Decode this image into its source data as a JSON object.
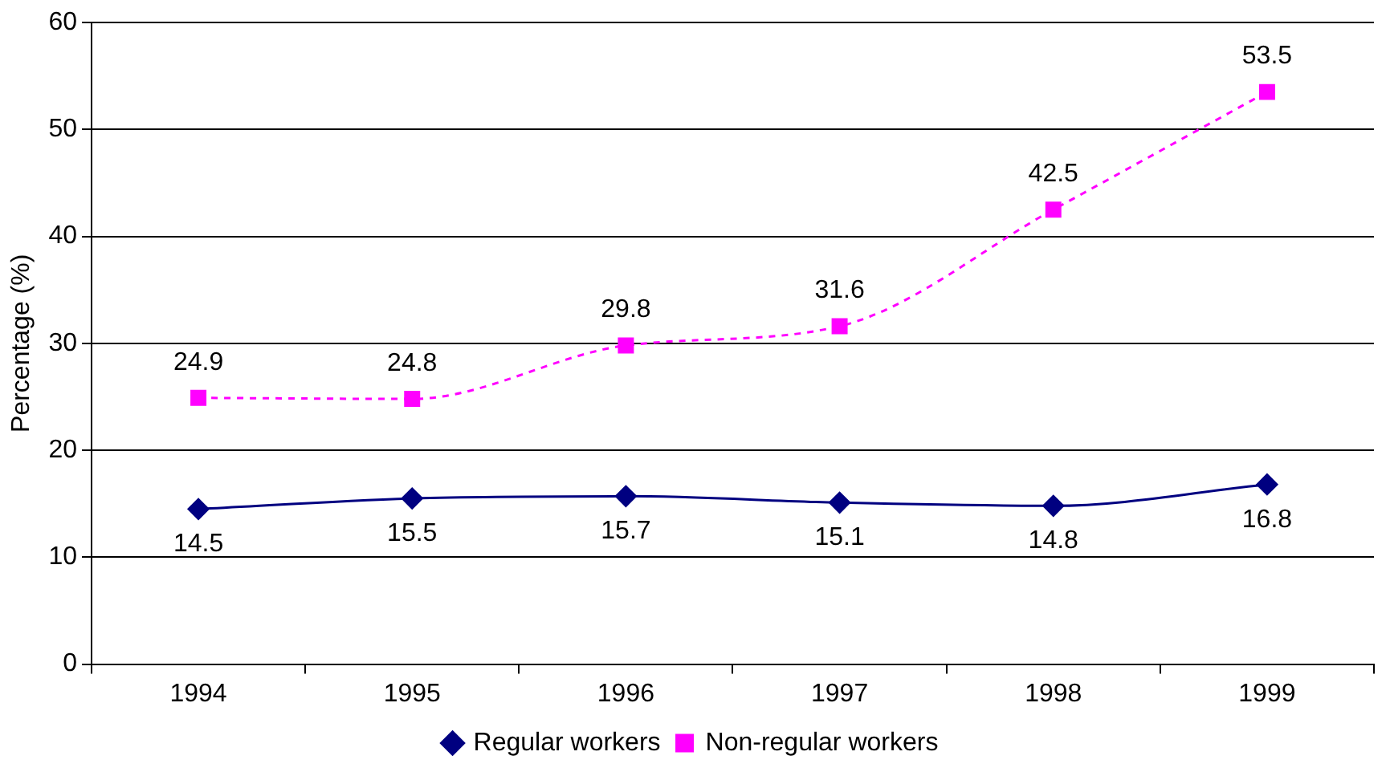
{
  "chart_data": {
    "type": "line",
    "ylabel": "Percentage (%)",
    "categories": [
      "1994",
      "1995",
      "1996",
      "1997",
      "1998",
      "1999"
    ],
    "series": [
      {
        "name": "Regular workers",
        "color": "#000080",
        "values": [
          14.5,
          15.5,
          15.7,
          15.1,
          14.8,
          16.8
        ],
        "marker": "diamond",
        "line_style": "solid"
      },
      {
        "name": "Non-regular workers",
        "color": "#ff00ff",
        "values": [
          24.9,
          24.8,
          29.8,
          31.6,
          42.5,
          53.5
        ],
        "marker": "square",
        "line_style": "dashed"
      }
    ],
    "ylim": [
      0,
      60
    ],
    "yticks": [
      0,
      10,
      20,
      30,
      40,
      50,
      60
    ],
    "grid": "y",
    "legend": "bottom",
    "data_labels": true
  }
}
